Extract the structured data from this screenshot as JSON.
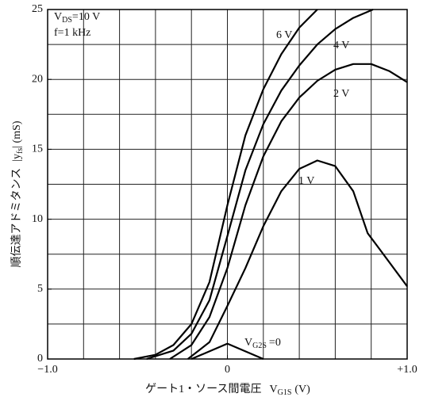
{
  "chart_data": {
    "type": "line",
    "x_label": "ゲート1・ソース間電圧",
    "x_label_symbol": "V",
    "x_label_sub": "G1S",
    "x_label_unit": "(V)",
    "y_label": "順伝達アドミタンス",
    "y_label_symbol": "|y",
    "y_label_sub": "fs",
    "y_label_unit": "| (mS)",
    "annotations": [
      {
        "symbol": "V",
        "sub": "DS",
        "text": "=10  V"
      },
      {
        "symbol": "f",
        "sub": "",
        "text": "=1  kHz"
      }
    ],
    "series_label_prefix": {
      "symbol": "V",
      "sub": "G2S",
      "text": "="
    },
    "xlim": [
      -1.0,
      1.0
    ],
    "ylim": [
      0,
      25
    ],
    "xticks": [
      {
        "value": -1.0,
        "label": "−1.0"
      },
      0,
      {
        "value": 1.0,
        "label": "+1.0"
      }
    ],
    "yticks": [
      0,
      5,
      10,
      15,
      20,
      25
    ],
    "xgrid": [
      -0.8,
      -0.6,
      -0.4,
      -0.2,
      0,
      0.2,
      0.4,
      0.6,
      0.8
    ],
    "ygrid": [
      2.5,
      5,
      7.5,
      10,
      12.5,
      15,
      17.5,
      20,
      22.5
    ],
    "series": [
      {
        "name": "6 V",
        "color": "#000000",
        "x": [
          -0.52,
          -0.4,
          -0.3,
          -0.2,
          -0.1,
          0,
          0.1,
          0.2,
          0.3,
          0.4,
          0.5
        ],
        "values": [
          0,
          0.3,
          1.0,
          2.5,
          5.5,
          11,
          16,
          19.3,
          21.8,
          23.7,
          25
        ]
      },
      {
        "name": "4 V",
        "color": "#000000",
        "x": [
          -0.45,
          -0.3,
          -0.2,
          -0.1,
          0,
          0.1,
          0.2,
          0.3,
          0.4,
          0.5,
          0.6,
          0.7,
          0.81
        ],
        "values": [
          0,
          0.6,
          1.8,
          4.2,
          8.8,
          13.5,
          16.8,
          19.2,
          21,
          22.5,
          23.6,
          24.4,
          25
        ]
      },
      {
        "name": "2 V",
        "color": "#000000",
        "x": [
          -0.32,
          -0.2,
          -0.1,
          0,
          0.1,
          0.2,
          0.3,
          0.4,
          0.5,
          0.6,
          0.7,
          0.8,
          0.9,
          1.0
        ],
        "values": [
          0,
          1.0,
          3.0,
          6.5,
          11,
          14.5,
          17,
          18.7,
          19.9,
          20.7,
          21.1,
          21.1,
          20.6,
          19.8
        ]
      },
      {
        "name": "1 V",
        "color": "#000000",
        "x": [
          -0.22,
          -0.1,
          0,
          0.1,
          0.2,
          0.3,
          0.4,
          0.5,
          0.6,
          0.7,
          0.78,
          0.85,
          1.0
        ],
        "values": [
          0,
          1.2,
          3.8,
          6.5,
          9.5,
          12,
          13.6,
          14.2,
          13.8,
          12,
          9,
          7.8,
          5.2
        ]
      },
      {
        "name": "0",
        "color": "#000000",
        "x": [
          -0.2,
          0,
          0.2
        ],
        "values": [
          0,
          1.1,
          0
        ]
      }
    ]
  }
}
